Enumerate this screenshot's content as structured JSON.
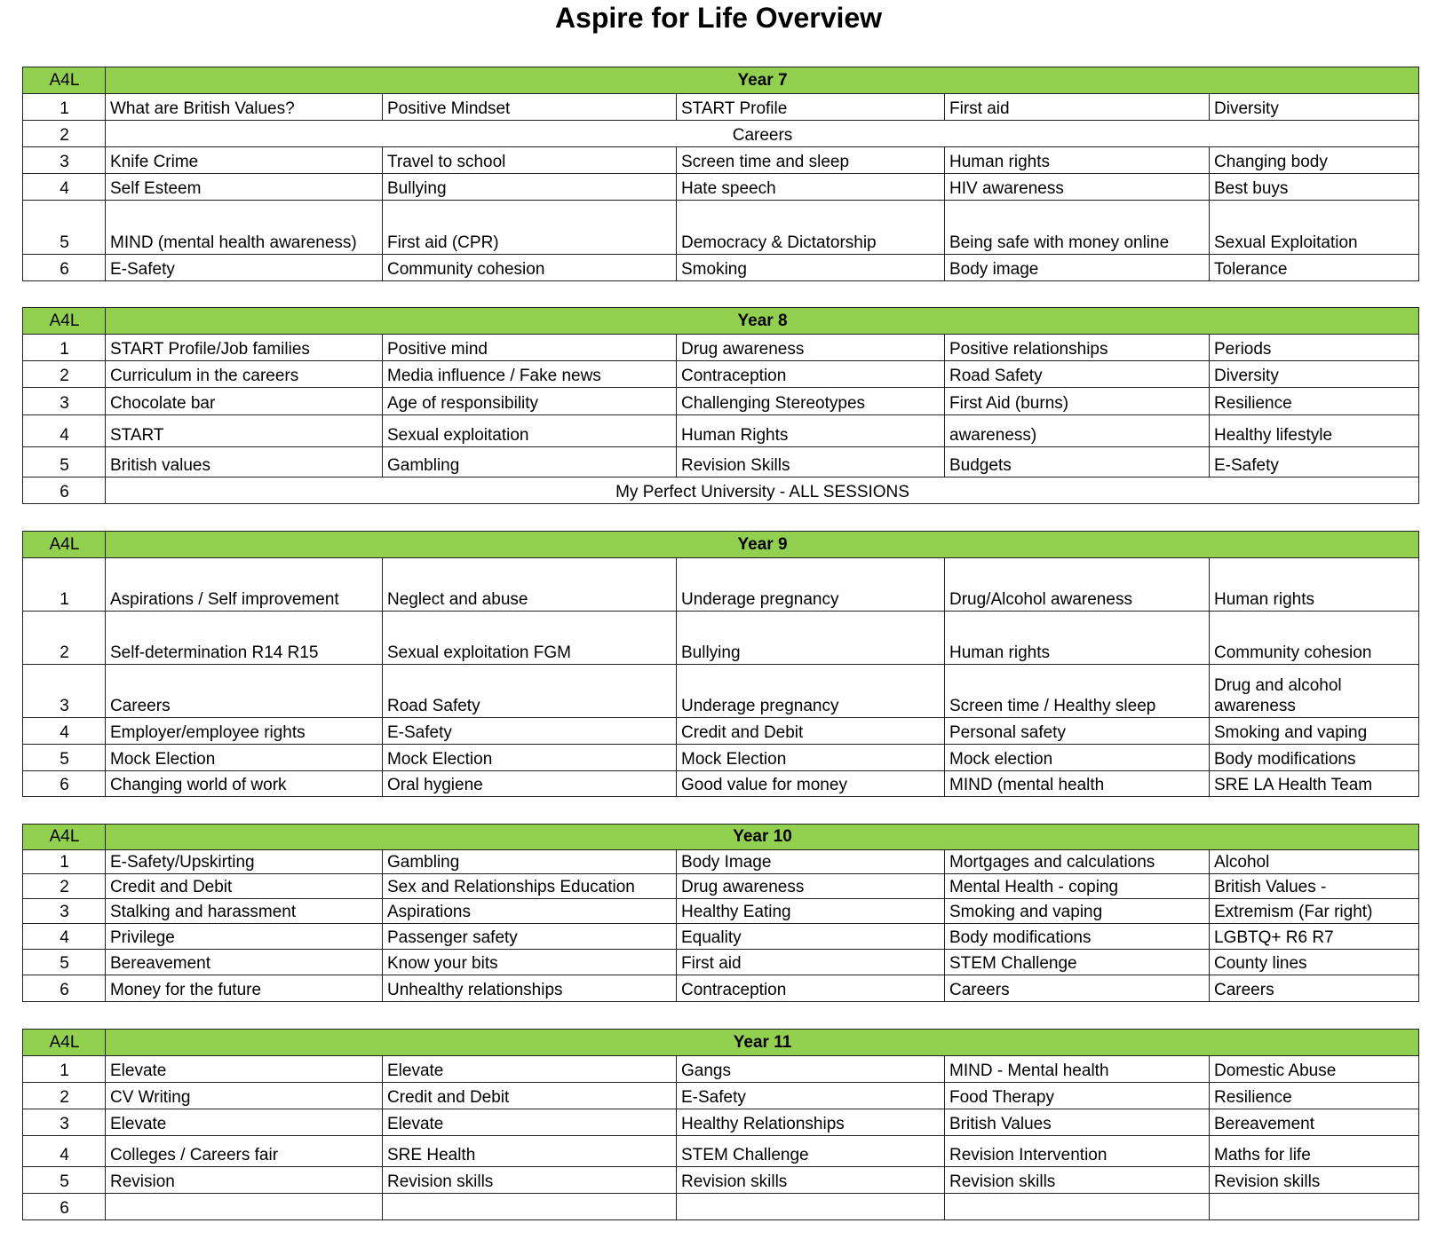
{
  "title": "Aspire for Life Overview",
  "sections": [
    {
      "label": "A4L",
      "title": "Year 7",
      "rows": [
        {
          "num": "1",
          "cells": [
            "What are British Values?",
            "Positive Mindset",
            "START Profile",
            "First aid",
            "Diversity"
          ]
        },
        {
          "num": "2",
          "span": "Careers"
        },
        {
          "num": "3",
          "cells": [
            "Knife Crime",
            "Travel to school",
            "Screen time and sleep",
            "Human rights",
            "Changing body"
          ]
        },
        {
          "num": "4",
          "cells": [
            "Self Esteem",
            "Bullying",
            "Hate speech",
            "HIV awareness",
            "Best buys"
          ]
        },
        {
          "num": "5",
          "cells": [
            "MIND (mental health awareness)",
            "First aid (CPR)",
            "Democracy & Dictatorship",
            "Being safe with money online",
            "Sexual Exploitation"
          ]
        },
        {
          "num": "6",
          "cells": [
            "E-Safety",
            "Community cohesion",
            "Smoking",
            "Body image",
            "Tolerance"
          ]
        }
      ]
    },
    {
      "label": "A4L",
      "title": "Year 8",
      "rows": [
        {
          "num": "1",
          "cells": [
            "START Profile/Job families",
            "Positive mind",
            "Drug awareness",
            "Positive relationships",
            "Periods"
          ]
        },
        {
          "num": "2",
          "cells": [
            "Curriculum in the careers",
            "Media influence / Fake news",
            "Contraception",
            "Road Safety",
            "Diversity"
          ]
        },
        {
          "num": "3",
          "cells": [
            "Chocolate bar",
            "Age of responsibility",
            "Challenging Stereotypes",
            "First Aid (burns)",
            "Resilience"
          ]
        },
        {
          "num": "4",
          "cells": [
            "START",
            "Sexual exploitation",
            "Human Rights",
            "awareness)",
            "Healthy lifestyle"
          ]
        },
        {
          "num": "5",
          "cells": [
            "British values",
            "Gambling",
            "Revision Skills",
            "Budgets",
            "E-Safety"
          ]
        },
        {
          "num": "6",
          "span": "My Perfect University - ALL SESSIONS"
        }
      ]
    },
    {
      "label": "A4L",
      "title": "Year 9",
      "rows": [
        {
          "num": "1",
          "cells": [
            "Aspirations / Self improvement",
            "Neglect and abuse",
            "Underage pregnancy",
            "Drug/Alcohol awareness",
            "Human rights"
          ]
        },
        {
          "num": "2",
          "cells": [
            "Self-determination R14 R15",
            "Sexual exploitation FGM",
            "Bullying",
            "Human rights",
            "Community cohesion"
          ]
        },
        {
          "num": "3",
          "cells": [
            "Careers",
            "Road Safety",
            "Underage pregnancy",
            "Screen time / Healthy sleep",
            "Drug and alcohol awareness"
          ]
        },
        {
          "num": "4",
          "cells": [
            "Employer/employee rights",
            "E-Safety",
            "Credit and Debit",
            "Personal safety",
            "Smoking and vaping"
          ]
        },
        {
          "num": "5",
          "cells": [
            "Mock Election",
            "Mock Election",
            "Mock Election",
            "Mock election",
            "Body modifications"
          ]
        },
        {
          "num": "6",
          "cells": [
            "Changing world of work",
            "Oral hygiene",
            "Good value for money",
            "MIND (mental health",
            "SRE LA Health Team"
          ]
        }
      ]
    },
    {
      "label": "A4L",
      "title": "Year 10",
      "rows": [
        {
          "num": "1",
          "cells": [
            "E-Safety/Upskirting",
            "Gambling",
            "Body Image",
            "Mortgages and calculations",
            "Alcohol"
          ]
        },
        {
          "num": "2",
          "cells": [
            "Credit and Debit",
            "Sex and Relationships Education",
            "Drug awareness",
            "Mental Health  - coping",
            "British Values -"
          ]
        },
        {
          "num": "3",
          "cells": [
            "Stalking and harassment",
            "Aspirations",
            "Healthy Eating",
            "Smoking and vaping",
            "Extremism (Far right)"
          ]
        },
        {
          "num": "4",
          "cells": [
            "Privilege",
            "Passenger safety",
            "Equality",
            "Body modifications",
            "LGBTQ+ R6 R7"
          ]
        },
        {
          "num": "5",
          "cells": [
            "Bereavement",
            "Know your bits",
            "First aid",
            "STEM Challenge",
            "County lines"
          ]
        },
        {
          "num": "6",
          "cells": [
            "Money for the future",
            "Unhealthy relationships",
            "Contraception",
            "Careers",
            "Careers"
          ]
        }
      ]
    },
    {
      "label": "A4L",
      "title": "Year 11",
      "rows": [
        {
          "num": "1",
          "cells": [
            "Elevate",
            "Elevate",
            "Gangs",
            "MIND - Mental health",
            "Domestic Abuse"
          ]
        },
        {
          "num": "2",
          "cells": [
            "CV Writing",
            "Credit and Debit",
            "E-Safety",
            "Food Therapy",
            "Resilience"
          ]
        },
        {
          "num": "3",
          "cells": [
            "Elevate",
            "Elevate",
            "Healthy Relationships",
            "British Values",
            "Bereavement"
          ]
        },
        {
          "num": "4",
          "cells": [
            "Colleges / Careers fair",
            "SRE Health",
            "STEM Challenge",
            "Revision Intervention",
            "Maths for life"
          ]
        },
        {
          "num": "5",
          "cells": [
            "Revision",
            "Revision skills",
            "Revision skills",
            "Revision skills",
            "Revision skills"
          ]
        },
        {
          "num": "6",
          "cells": [
            "",
            "",
            "",
            "",
            ""
          ]
        }
      ]
    }
  ]
}
